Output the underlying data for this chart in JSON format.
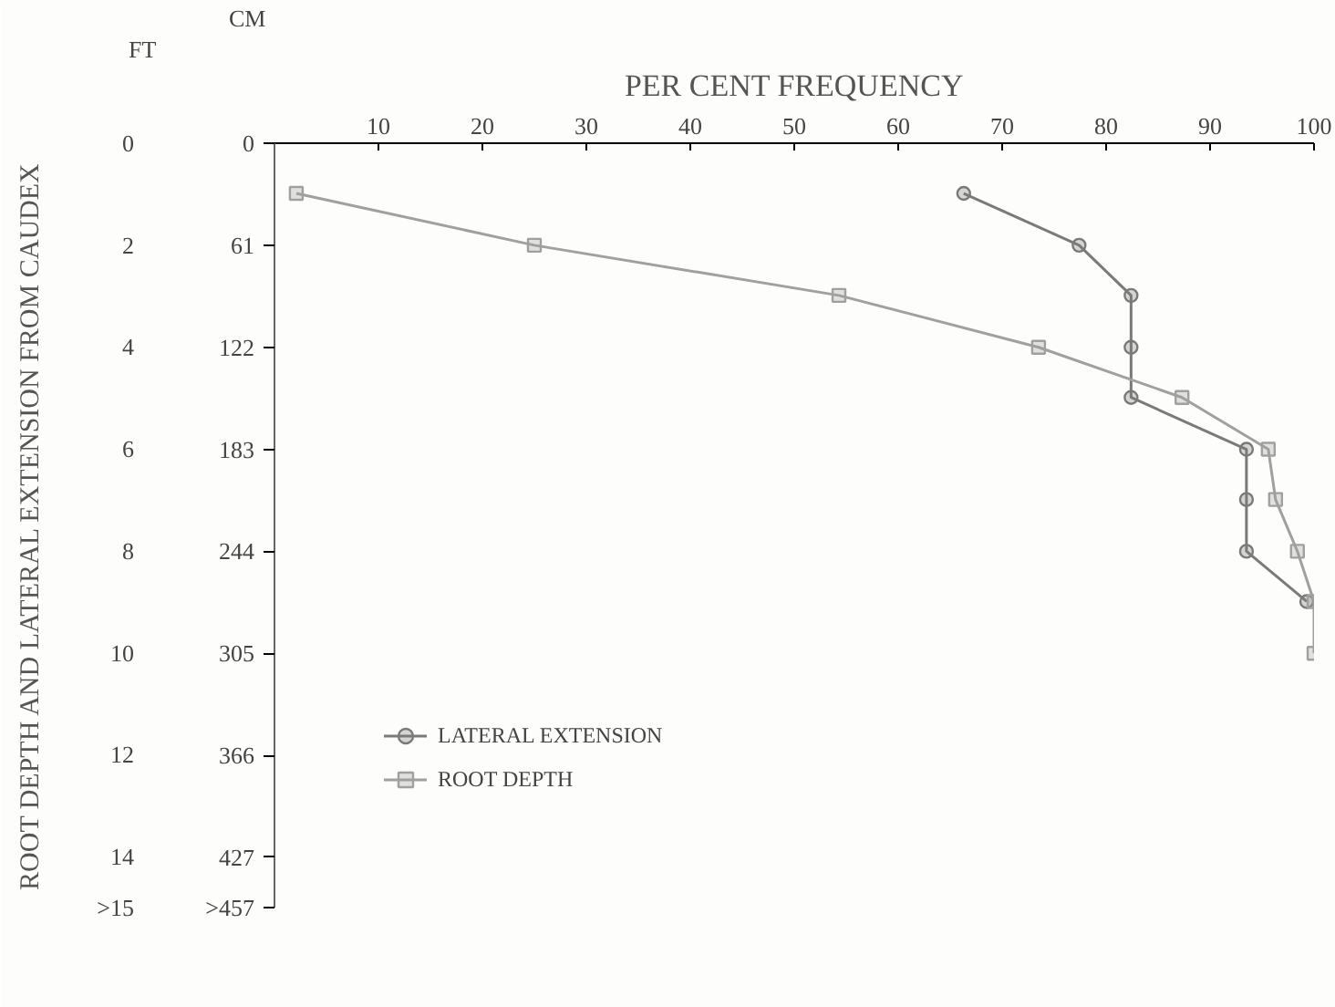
{
  "chart_data": {
    "type": "line",
    "xlabel": "PER CENT FREQUENCY",
    "ylabel": "ROOT DEPTH AND LATERAL EXTENSION FROM CAUDEX",
    "annotations": [
      "FT",
      "CM"
    ],
    "xlim": [
      0,
      100
    ],
    "xticks": [
      10,
      20,
      30,
      40,
      50,
      60,
      70,
      80,
      90,
      100
    ],
    "ylim": [
      15,
      0
    ],
    "yticks": [
      0,
      2,
      4,
      6,
      8,
      10,
      12,
      14,
      {
        "value": 15,
        "label": ">15"
      }
    ],
    "y2lim": [
      457,
      0
    ],
    "y2ticks": [
      0,
      61,
      122,
      183,
      244,
      305,
      366,
      427,
      {
        "value": 457,
        "label": ">457"
      }
    ],
    "series": [
      {
        "name": "LATERAL EXTENSION",
        "color": "#7a7a7a",
        "marker": "circle",
        "axis": "y2",
        "x": [
          66.3,
          77.4,
          82.4,
          82.4,
          82.4,
          93.5,
          93.5,
          93.5,
          99.3
        ],
        "values": [
          30,
          61,
          91,
          122,
          152,
          183,
          213,
          244,
          274
        ]
      },
      {
        "name": "ROOT DEPTH",
        "color": "#a0a0a0",
        "marker": "square",
        "axis": "y2",
        "x": [
          2.1,
          25,
          54.3,
          73.5,
          87.3,
          95.6,
          96.3,
          98.4,
          100,
          100
        ],
        "values": [
          30,
          61,
          91,
          122,
          152,
          183,
          213,
          244,
          274,
          305
        ]
      }
    ],
    "legend": "bottom left",
    "grid": false,
    "line_style": "solid"
  }
}
